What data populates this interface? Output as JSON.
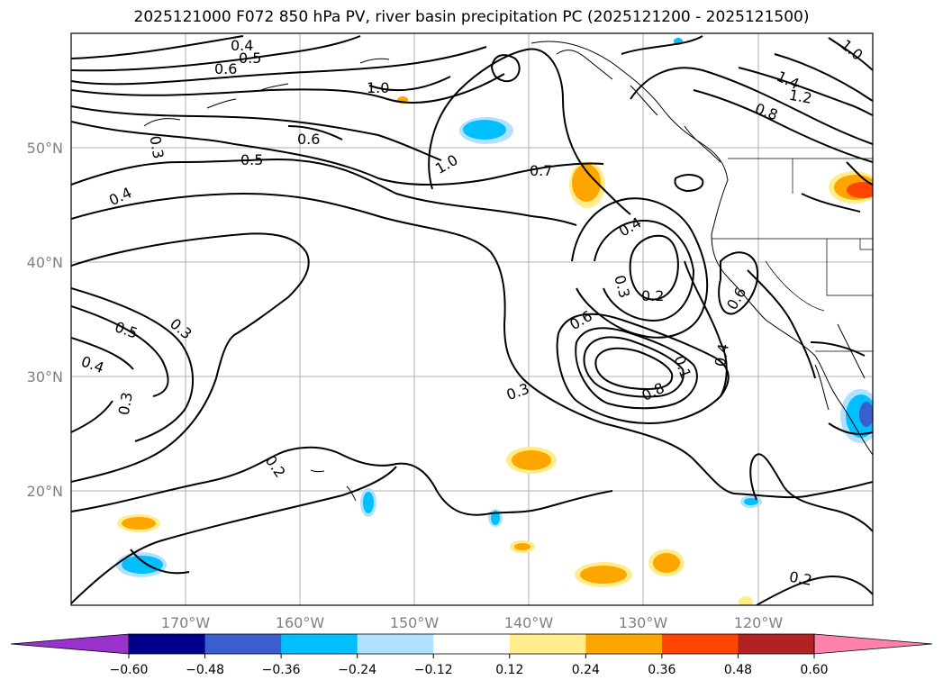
{
  "title": "2025121000 F072 850 hPa PV, river basin precipitation PC (2025121200 - 2025121500)",
  "map": {
    "lon_range": [
      -180,
      -110
    ],
    "lat_range": [
      10,
      60
    ],
    "lat_labels": [
      "20°N",
      "30°N",
      "40°N",
      "50°N"
    ],
    "lon_labels": [
      "170°W",
      "160°W",
      "150°W",
      "140°W",
      "130°W",
      "120°W"
    ],
    "contour_labels": [
      "0.4",
      "0.5",
      "0.6",
      "1.0",
      "0.3",
      "0.6",
      "0.5",
      "0.4",
      "1.0",
      "0.7",
      "0.4",
      "0.3",
      "0.2",
      "0.6",
      "0.3",
      "0.5",
      "0.4",
      "0.3",
      "0.3",
      "0.1",
      "0.8",
      "0.4",
      "0.6",
      "0.2",
      "1.4",
      "1.2",
      "0.8",
      "1.0",
      "0.2"
    ]
  },
  "colorbar": {
    "tick_labels": [
      "−0.60",
      "−0.48",
      "−0.36",
      "−0.24",
      "−0.12",
      "0.12",
      "0.24",
      "0.36",
      "0.48",
      "0.60"
    ],
    "colors": [
      "#9932cc",
      "#00008b",
      "#3a5fcd",
      "#00bfff",
      "#b0e2ff",
      "#ffffff",
      "#ffec8b",
      "#ffa500",
      "#ff4500",
      "#b22222",
      "#ff82ab"
    ]
  }
}
